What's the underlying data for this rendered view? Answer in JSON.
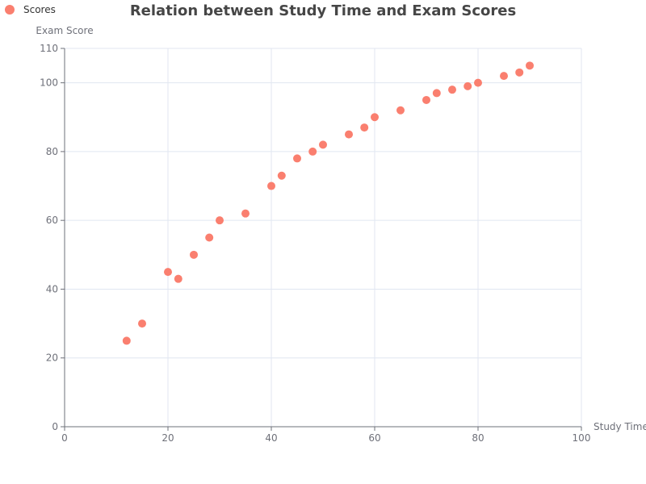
{
  "chart_data": {
    "type": "scatter",
    "title": "Relation between Study Time and Exam Scores",
    "xlabel": "Study Time",
    "ylabel": "Exam Score",
    "xlim": [
      0,
      100
    ],
    "ylim": [
      0,
      110
    ],
    "x_ticks": [
      0,
      20,
      40,
      60,
      80,
      100
    ],
    "y_ticks": [
      0,
      20,
      40,
      60,
      80,
      100,
      110
    ],
    "grid": true,
    "legend_position": "top-left",
    "series": [
      {
        "name": "Scores",
        "color": "#fa7f6f",
        "points": [
          [
            12,
            25
          ],
          [
            15,
            30
          ],
          [
            20,
            45
          ],
          [
            22,
            43
          ],
          [
            25,
            50
          ],
          [
            28,
            55
          ],
          [
            30,
            60
          ],
          [
            35,
            62
          ],
          [
            40,
            70
          ],
          [
            42,
            73
          ],
          [
            45,
            78
          ],
          [
            48,
            80
          ],
          [
            50,
            82
          ],
          [
            55,
            85
          ],
          [
            58,
            87
          ],
          [
            60,
            90
          ],
          [
            65,
            92
          ],
          [
            70,
            95
          ],
          [
            72,
            97
          ],
          [
            75,
            98
          ],
          [
            78,
            99
          ],
          [
            80,
            100
          ],
          [
            85,
            102
          ],
          [
            88,
            103
          ],
          [
            90,
            105
          ]
        ]
      }
    ]
  }
}
